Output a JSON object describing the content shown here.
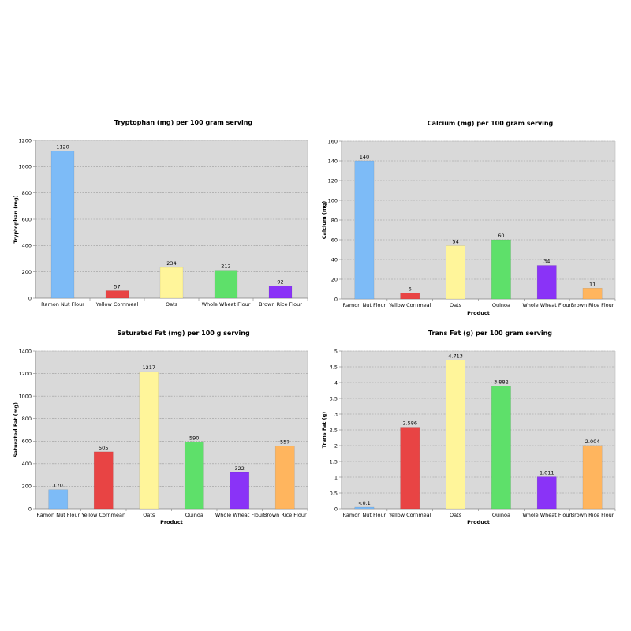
{
  "colors": {
    "plot_bg": "#d9d9d9",
    "grid": "#9a9a9a",
    "axis": "#808080",
    "bars": [
      "#7dbbf7",
      "#e84444",
      "#fff59a",
      "#5ee06a",
      "#8a33f7",
      "#ffb55e"
    ]
  },
  "chart_data": [
    {
      "type": "bar",
      "title": "Tryptophan (mg) per 100 gram serving",
      "xlabel": "",
      "ylabel": "Tryptophan (mg)",
      "ylim": [
        0,
        1200
      ],
      "yticks": [
        "0",
        "200",
        "400",
        "600",
        "800",
        "1000",
        "1200"
      ],
      "grid": true,
      "categories": [
        "Ramon Nut Flour",
        "Yellow Cornmeal",
        "Oats",
        "Whole Wheat Flour",
        "Brown Rice Flour"
      ],
      "values": [
        1120,
        57,
        234,
        212,
        92
      ],
      "value_labels": [
        "1120",
        "57",
        "234",
        "212",
        "92"
      ],
      "color_index": [
        0,
        1,
        2,
        3,
        4
      ]
    },
    {
      "type": "bar",
      "title": "Calcium (mg) per 100 gram serving",
      "xlabel": "Product",
      "ylabel": "Calcium (mg)",
      "ylim": [
        0,
        160
      ],
      "yticks": [
        "0",
        "20",
        "40",
        "60",
        "80",
        "100",
        "120",
        "140",
        "160"
      ],
      "grid": true,
      "categories": [
        "Ramon Nut Flour",
        "Yellow Cornmeal",
        "Oats",
        "Quinoa",
        "Whole Wheat Flour",
        "Brown Rice Flour"
      ],
      "values": [
        140,
        6,
        54,
        60,
        34,
        11
      ],
      "value_labels": [
        "140",
        "6",
        "54",
        "60",
        "34",
        "11"
      ],
      "color_index": [
        0,
        1,
        2,
        3,
        4,
        5
      ]
    },
    {
      "type": "bar",
      "title": "Saturated Fat (mg) per 100 g serving",
      "xlabel": "Product",
      "ylabel": "Saturated Fat (mg)",
      "ylim": [
        0,
        1400
      ],
      "yticks": [
        "0",
        "200",
        "400",
        "600",
        "800",
        "1000",
        "1200",
        "1400"
      ],
      "grid": true,
      "categories": [
        "Ramon Nut Flour",
        "Yellow Cornmean",
        "Oats",
        "Quinoa",
        "Whole Wheat Flour",
        "Brown Rice Flour"
      ],
      "values": [
        170,
        505,
        1217,
        590,
        322,
        557
      ],
      "value_labels": [
        "170",
        "505",
        "1217",
        "590",
        "322",
        "557"
      ],
      "color_index": [
        0,
        1,
        2,
        3,
        4,
        5
      ]
    },
    {
      "type": "bar",
      "title": "Trans Fat (g) per 100 gram serving",
      "xlabel": "Product",
      "ylabel": "Trans Fat (g)",
      "ylim": [
        0,
        5
      ],
      "yticks": [
        "0",
        "0.5",
        "1",
        "1.5",
        "2",
        "2.5",
        "3",
        "3.5",
        "4",
        "4.5",
        "5"
      ],
      "grid": true,
      "categories": [
        "Ramon Nut Flour",
        "Yellow Cornmeal",
        "Oats",
        "Quinoa",
        "Whole Wheat Flour",
        "Brown Rice Flour"
      ],
      "values": [
        0.05,
        2.586,
        4.713,
        3.882,
        1.011,
        2.004
      ],
      "value_labels": [
        "<0.1",
        "2.586",
        "4.713",
        "3.882",
        "1.011",
        "2.004"
      ],
      "color_index": [
        0,
        1,
        2,
        3,
        4,
        5
      ]
    }
  ]
}
